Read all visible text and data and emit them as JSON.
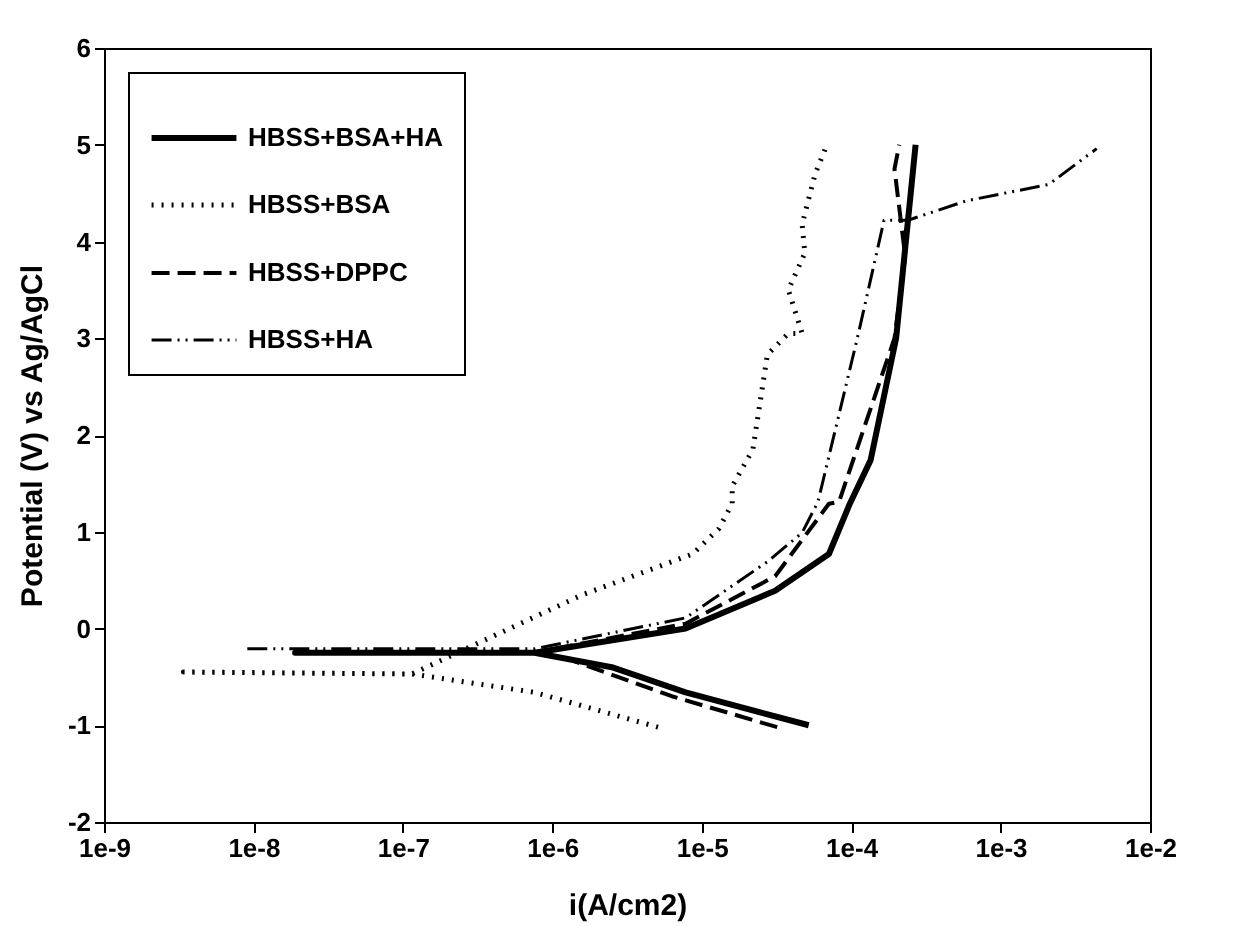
{
  "chart_data": {
    "type": "line",
    "xlabel": "i(A/cm2)",
    "ylabel": "Potential (V) vs Ag/AgCl",
    "log": "x",
    "grid": false,
    "legend": "top left",
    "marker": "none",
    "xlim": [
      1e-09,
      0.01
    ],
    "xticks": [
      {
        "value": 1e-09,
        "label": "1e-9"
      },
      {
        "value": 1e-08,
        "label": "1e-8"
      },
      {
        "value": 1e-07,
        "label": "1e-7"
      },
      {
        "value": 1e-06,
        "label": "1e-6"
      },
      {
        "value": 1e-05,
        "label": "1e-5"
      },
      {
        "value": 0.0001,
        "label": "1e-4"
      },
      {
        "value": 0.001,
        "label": "1e-3"
      },
      {
        "value": 0.01,
        "label": "1e-2"
      }
    ],
    "ylim": [
      -2,
      6
    ],
    "yticks": [
      -2,
      -1,
      0,
      1,
      2,
      3,
      4,
      5,
      6
    ],
    "series": [
      {
        "name": "HBSS+BSA+HA",
        "color": "#000000",
        "line_style": "solid",
        "x": [
          5.2e-05,
          7.8e-06,
          2.5e-06,
          7.6e-07,
          1.9e-08,
          7.6e-07,
          7.8e-06,
          3.1e-05,
          7.1e-05,
          9.8e-05,
          0.000135,
          0.0002,
          0.00027
        ],
        "values": [
          -1.0,
          -0.66,
          -0.4,
          -0.25,
          -0.25,
          -0.25,
          0,
          0.39,
          0.77,
          1.29,
          1.74,
          3.0,
          5.0
        ]
      },
      {
        "name": "HBSS+BSA",
        "color": "#000000",
        "line_style": "dotted",
        "x": [
          5.1e-06,
          7.6e-07,
          1.15e-07,
          3.4e-09,
          1.15e-07,
          3e-07,
          1.6e-06,
          8.7e-06,
          1.3e-05,
          1.6e-05,
          1.6e-05,
          2.2e-05,
          2.75e-05,
          3.8e-05,
          4.7e-05,
          3.8e-05,
          4.9e-05,
          4.7e-05,
          5.75e-05,
          6.8e-05
        ],
        "values": [
          -1.02,
          -0.66,
          -0.47,
          -0.45,
          -0.47,
          -0.17,
          0.35,
          0.77,
          1.03,
          1.29,
          1.47,
          1.85,
          2.83,
          3.05,
          3.05,
          3.5,
          3.88,
          4.18,
          4.7,
          4.98
        ]
      },
      {
        "name": "HBSS+DPPC",
        "color": "#000000",
        "line_style": "dashed",
        "x": [
          3.2e-05,
          6.3e-06,
          1.3e-06,
          7.6e-07,
          1.9e-08,
          7.6e-07,
          7.8e-06,
          3.1e-05,
          7.1e-05,
          8.3e-05,
          0.000195,
          0.00023,
          0.000195,
          0.00021
        ],
        "values": [
          -1.02,
          -0.7,
          -0.32,
          -0.25,
          -0.25,
          -0.25,
          0.05,
          0.54,
          1.29,
          1.31,
          3.0,
          3.85,
          4.75,
          5.0
        ]
      },
      {
        "name": "HBSS+HA",
        "color": "#000000",
        "line_style": "dashdot",
        "x": [
          9.1e-09,
          7.6e-07,
          7.8e-06,
          2.75e-05,
          4.7e-05,
          6e-05,
          0.00011,
          0.000166,
          0.00024,
          0.00059,
          0.0021,
          0.0044
        ],
        "values": [
          -0.21,
          -0.21,
          0.11,
          0.69,
          0.99,
          1.31,
          3.0,
          4.22,
          4.22,
          4.42,
          4.59,
          4.96
        ]
      }
    ]
  }
}
